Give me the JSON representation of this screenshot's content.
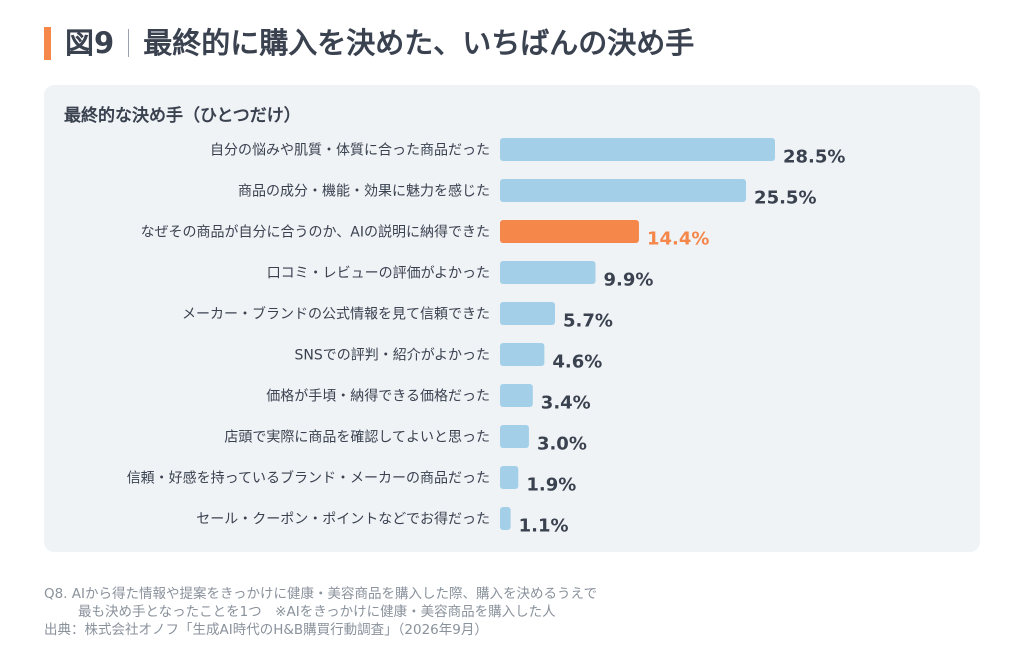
{
  "header": {
    "figure_no": "図9",
    "title": "最終的に購入を決めた、いちばんの決め手"
  },
  "chart_data": {
    "type": "bar",
    "orientation": "horizontal",
    "title": "最終的な決め手（ひとつだけ）",
    "categories": [
      "自分の悩みや肌質・体質に合った商品だった",
      "商品の成分・機能・効果に魅力を感じた",
      "なぜその商品が自分に合うのか、AIの説明に納得できた",
      "口コミ・レビューの評価がよかった",
      "メーカー・ブランドの公式情報を見て信頼できた",
      "SNSでの評判・紹介がよかった",
      "価格が手頃・納得できる価格だった",
      "店頭で実際に商品を確認してよいと思った",
      "信頼・好感を持っているブランド・メーカーの商品だった",
      "セール・クーポン・ポイントなどでお得だった"
    ],
    "values": [
      28.5,
      25.5,
      14.4,
      9.9,
      5.7,
      4.6,
      3.4,
      3.0,
      1.9,
      1.1
    ],
    "value_labels": [
      "28.5%",
      "25.5%",
      "14.4%",
      "9.9%",
      "5.7%",
      "4.6%",
      "3.4%",
      "3.0%",
      "1.9%",
      "1.1%"
    ],
    "highlight_index": 2,
    "colors": {
      "bar": "#a3d0e8",
      "highlight": "#f5874a",
      "label": "#3a4250",
      "highlight_label": "#f5874a"
    },
    "grid": false,
    "xlim": [
      0,
      28.5
    ]
  },
  "footnotes": {
    "question_line1": "Q8. AIから得た情報や提案をきっかけに健康・美容商品を購入した際、購入を決めるうえで",
    "question_line2": "最も決め手となったことを1つ　※AIをきっかけに健康・美容商品を購入した人",
    "source": "出典：株式会社オノフ「生成AI時代のH&B購買行動調査」（2026年9月）"
  }
}
